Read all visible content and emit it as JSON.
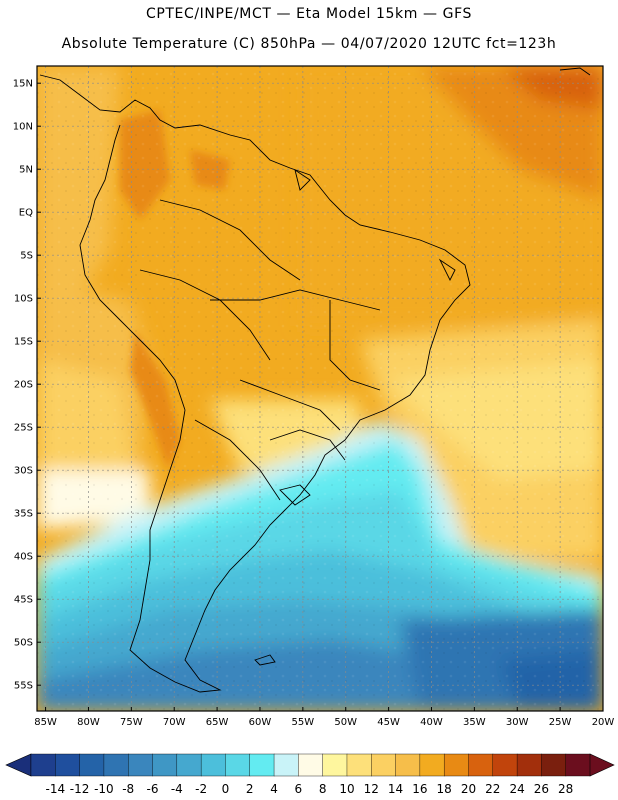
{
  "header": {
    "line1": "CPTEC/INPE/MCT —  Eta Model 15km — GFS",
    "line2": "Absolute Temperature (C) 850hPa — 04/07/2020 12UTC fct=123h"
  },
  "map": {
    "lat_labels": [
      "15N",
      "10N",
      "5N",
      "EQ",
      "5S",
      "10S",
      "15S",
      "20S",
      "25S",
      "30S",
      "35S",
      "40S",
      "45S",
      "50S",
      "55S"
    ],
    "lat_values": [
      15,
      10,
      5,
      0,
      -5,
      -10,
      -15,
      -20,
      -25,
      -30,
      -35,
      -40,
      -45,
      -50,
      -55
    ],
    "lon_labels": [
      "85W",
      "80W",
      "75W",
      "70W",
      "65W",
      "60W",
      "55W",
      "50W",
      "45W",
      "40W",
      "35W",
      "30W",
      "25W",
      "20W"
    ],
    "lon_values": [
      -85,
      -80,
      -75,
      -70,
      -65,
      -60,
      -55,
      -50,
      -45,
      -40,
      -35,
      -30,
      -25,
      -20
    ],
    "lon_range": [
      -86,
      -20
    ],
    "lat_range": [
      -58,
      17
    ]
  },
  "colorbar": {
    "labels": [
      "-14",
      "-12",
      "-10",
      "-8",
      "-6",
      "-4",
      "-2",
      "0",
      "2",
      "4",
      "6",
      "8",
      "10",
      "12",
      "14",
      "16",
      "18",
      "20",
      "22",
      "24",
      "26",
      "28"
    ],
    "colors": [
      "#1e3f8e",
      "#1f4f9e",
      "#2463a8",
      "#2f74b2",
      "#3a86bd",
      "#3f97c5",
      "#45a8cf",
      "#4cbfdb",
      "#5ad7e6",
      "#63ebf1",
      "#c9f3f8",
      "#fffbe6",
      "#fef69e",
      "#fde07a",
      "#fbd062",
      "#f6be4a",
      "#f2ab20",
      "#e88a14",
      "#d8620e",
      "#c1440c",
      "#a22f0c",
      "#7a1f0e",
      "#6b0e1e"
    ],
    "left_arrow_color": "#1a2f7a",
    "right_arrow_color": "#6b0e1e"
  }
}
